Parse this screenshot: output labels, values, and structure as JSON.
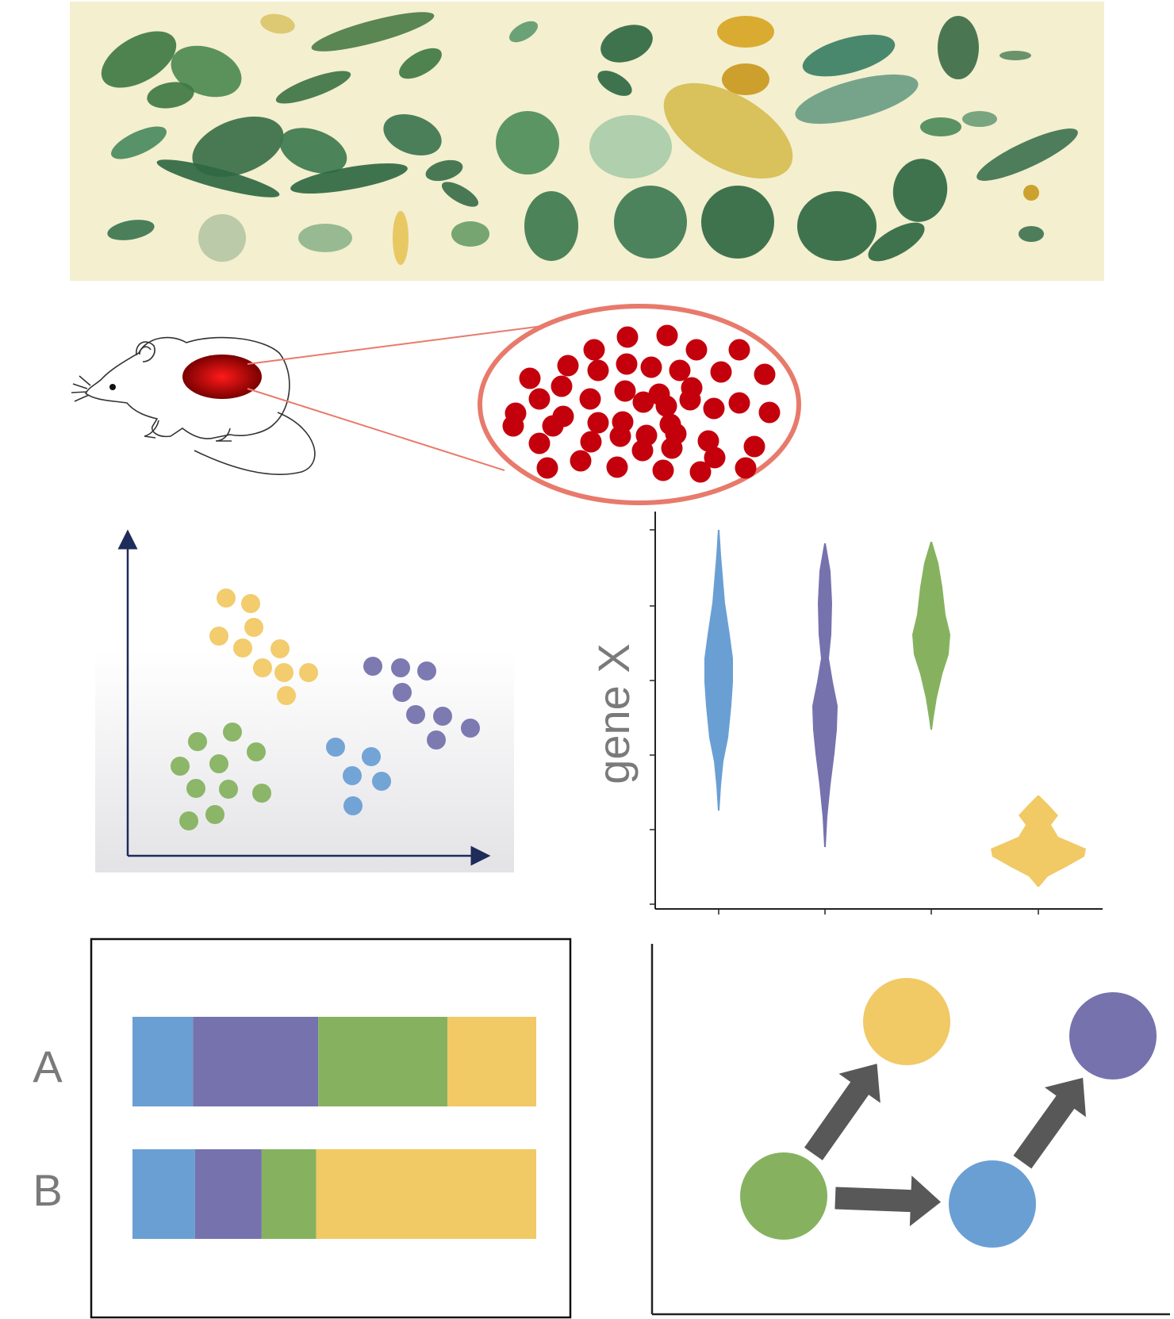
{
  "colors": {
    "blue": "#6a9fd4",
    "purple": "#7672ad",
    "green": "#86b260",
    "yellow": "#f1c965",
    "red_cell": "#c4000d",
    "ellipse_stroke": "#e87a6b",
    "arrow": "#585858",
    "axis_navy": "#1e2c5a",
    "banner_bg": "#f4efcf",
    "label_gray": "#7a7a7a"
  },
  "icons": {
    "banner": "botanical-leaves-illustration",
    "animal": "mouse-drawing",
    "organ": "highlighted-organ",
    "zoom": "cell-zoom-ellipse"
  },
  "violin": {
    "ylabel": "gene X",
    "groups": [
      "blue",
      "purple",
      "green",
      "yellow"
    ]
  },
  "bars": {
    "labels": [
      "A",
      "B"
    ],
    "rows": [
      {
        "label": "A",
        "fractions": [
          0.15,
          0.31,
          0.32,
          0.22
        ]
      },
      {
        "label": "B",
        "fractions": [
          0.155,
          0.165,
          0.135,
          0.545
        ]
      }
    ],
    "order": [
      "blue",
      "purple",
      "green",
      "yellow"
    ]
  },
  "network": {
    "nodes": [
      "green",
      "yellow",
      "blue",
      "purple"
    ],
    "edges": [
      [
        "green",
        "yellow"
      ],
      [
        "green",
        "blue"
      ],
      [
        "blue",
        "purple"
      ]
    ]
  }
}
